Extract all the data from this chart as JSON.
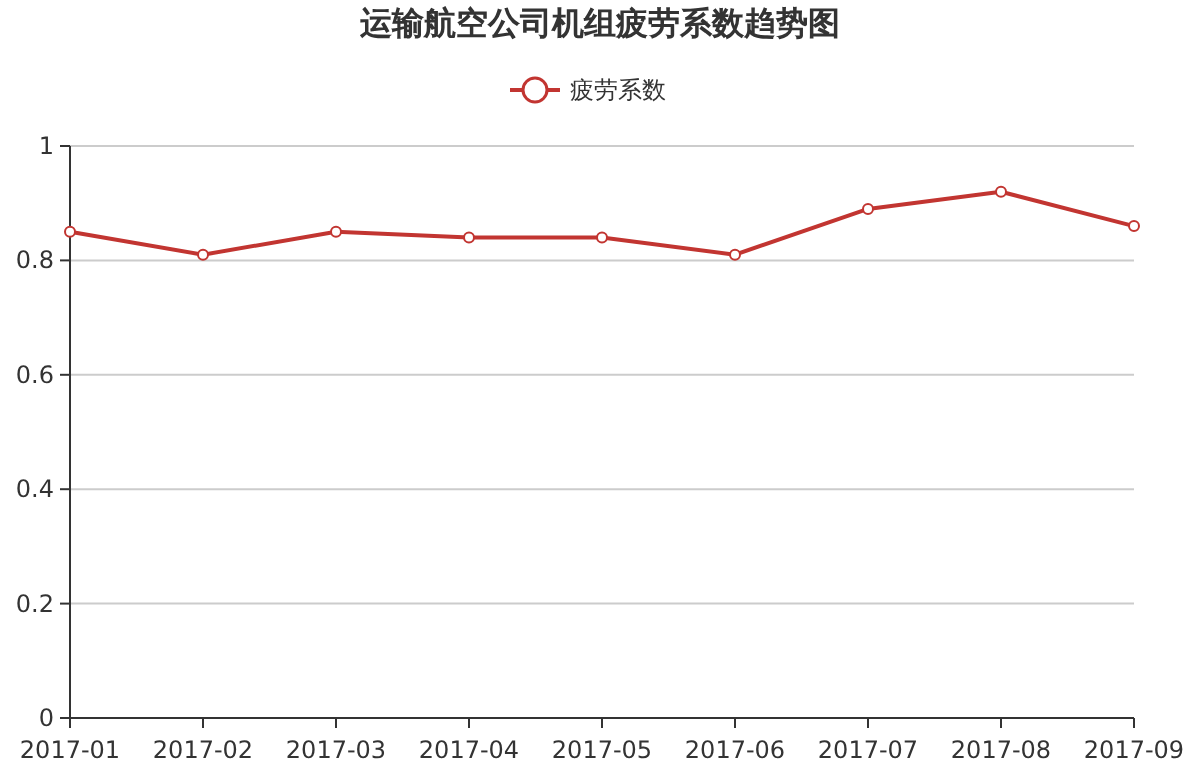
{
  "chart_data": {
    "type": "line",
    "title": "运输航空公司机组疲劳系数趋势图",
    "categories": [
      "2017-01",
      "2017-02",
      "2017-03",
      "2017-04",
      "2017-05",
      "2017-06",
      "2017-07",
      "2017-08",
      "2017-09"
    ],
    "series": [
      {
        "name": "疲劳系数",
        "color": "#c23531",
        "values": [
          0.85,
          0.81,
          0.85,
          0.84,
          0.84,
          0.81,
          0.89,
          0.92,
          0.86
        ]
      }
    ],
    "ylim": [
      0,
      1
    ],
    "yticks": [
      0,
      0.2,
      0.4,
      0.6,
      0.8,
      1
    ],
    "grid": "y",
    "legend": "top",
    "marker": "circle",
    "line_style": "solid"
  }
}
